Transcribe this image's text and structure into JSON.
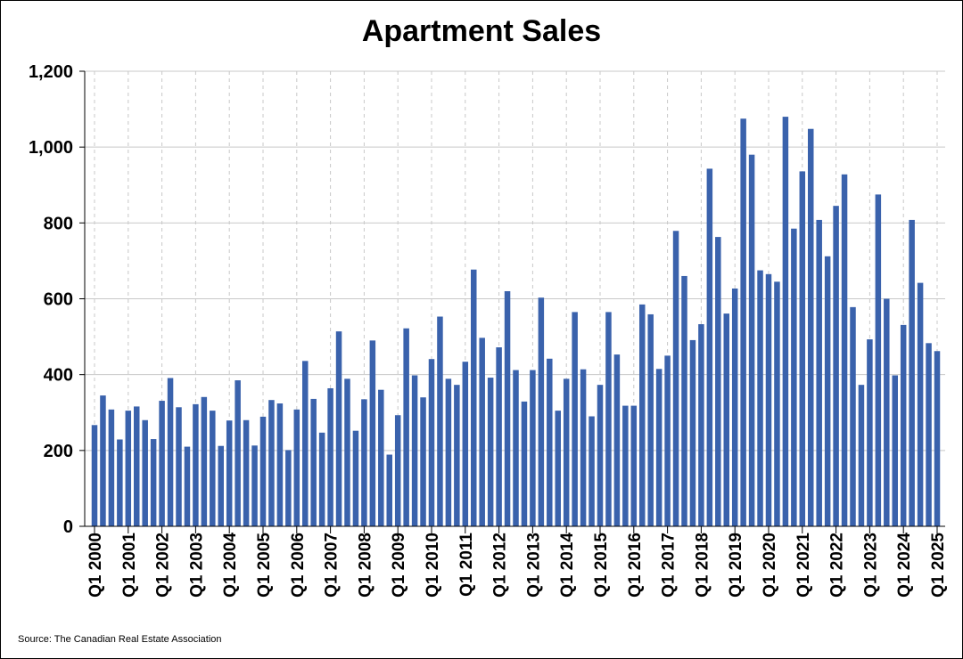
{
  "title": "Apartment Sales",
  "source": "Source: The Canadian Real Estate Association",
  "colors": {
    "bar": "#3a62ac",
    "grid": "#c8c8c8",
    "axis": "#000000"
  },
  "chart_data": {
    "type": "bar",
    "title": "Apartment Sales",
    "xlabel": "",
    "ylabel": "",
    "ylim": [
      0,
      1200
    ],
    "yticks": [
      "0",
      "200",
      "400",
      "600",
      "800",
      "1,000",
      "1,200"
    ],
    "ytick_values": [
      0,
      200,
      400,
      600,
      800,
      1000,
      1200
    ],
    "grid": {
      "horizontal": "solid",
      "vertical": "dashed"
    },
    "legend": "none",
    "xtick_labels": [
      "Q1 2000",
      "Q1 2001",
      "Q1 2002",
      "Q1 2003",
      "Q1 2004",
      "Q1 2005",
      "Q1 2006",
      "Q1 2007",
      "Q1 2008",
      "Q1 2009",
      "Q1 2010",
      "Q1 2011",
      "Q1 2012",
      "Q1 2013",
      "Q1 2014",
      "Q1 2015",
      "Q1 2016",
      "Q1 2017",
      "Q1 2018",
      "Q1 2019",
      "Q1 2020",
      "Q1 2021",
      "Q1 2022",
      "Q1 2023",
      "Q1 2024",
      "Q1 2025"
    ],
    "start": "Q1 2000",
    "end": "Q1 2025",
    "frequency": "quarterly",
    "values": [
      267,
      345,
      308,
      229,
      305,
      316,
      280,
      230,
      331,
      391,
      314,
      210,
      322,
      341,
      305,
      212,
      279,
      385,
      280,
      213,
      289,
      333,
      324,
      201,
      308,
      436,
      336,
      247,
      364,
      514,
      389,
      252,
      335,
      490,
      360,
      189,
      293,
      522,
      398,
      340,
      441,
      553,
      389,
      373,
      434,
      677,
      497,
      392,
      472,
      620,
      412,
      329,
      412,
      603,
      442,
      305,
      389,
      565,
      414,
      290,
      373,
      565,
      453,
      318,
      318,
      585,
      559,
      415,
      450,
      779,
      660,
      491,
      533,
      943,
      763,
      561,
      627,
      1075,
      980,
      675,
      665,
      645,
      1080,
      785,
      936,
      1048,
      808,
      712,
      845,
      928,
      578,
      373,
      493,
      875,
      600,
      398,
      531,
      808,
      642,
      483,
      462
    ]
  }
}
